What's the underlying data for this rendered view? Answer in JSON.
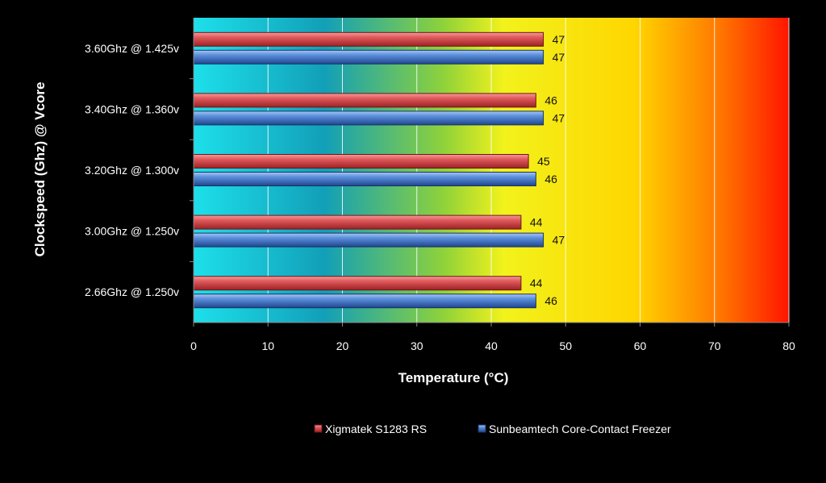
{
  "chart_data": {
    "type": "bar",
    "orientation": "horizontal",
    "title": "",
    "xlabel": "Temperature (°C)",
    "ylabel": "Clockspeed (Ghz) @ Vcore",
    "xlim": [
      0,
      80
    ],
    "xticks": [
      "0",
      "10",
      "20",
      "30",
      "40",
      "50",
      "60",
      "70",
      "80"
    ],
    "categories": [
      "3.60Ghz @ 1.425v",
      "3.40Ghz @ 1.360v",
      "3.20Ghz @ 1.300v",
      "3.00Ghz @ 1.250v",
      "2.66Ghz @ 1.250v"
    ],
    "series": [
      {
        "name": "Xigmatek S1283 RS",
        "values": [
          47,
          46,
          45,
          44,
          44
        ],
        "color": "#d9484b"
      },
      {
        "name": "Sunbeamtech Core-Contact Freezer",
        "values": [
          47,
          47,
          46,
          47,
          46
        ],
        "color": "#4a7fd0"
      }
    ],
    "grid": true,
    "legend_position": "bottom",
    "background_gradient": [
      "#17d3e0",
      "#1bb4c4",
      "#f4f41a",
      "#ffe000",
      "#ff8a00",
      "#ff1a00"
    ]
  }
}
